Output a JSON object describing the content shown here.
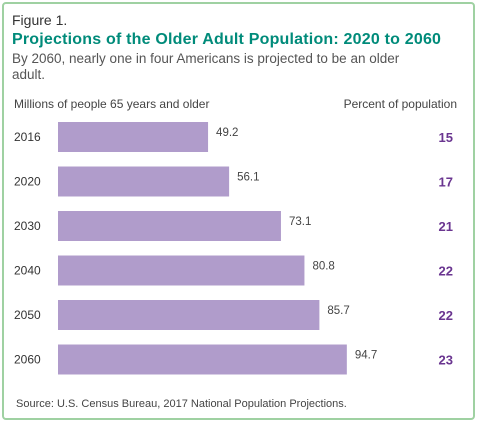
{
  "figure_label": "Figure 1.",
  "title": "Projections of the Older Adult Population: 2020 to 2060",
  "subtitle": "By 2060, nearly one in four Americans is projected to be an older adult.",
  "left_header": "Millions of people 65 years and older",
  "right_header": "Percent of population",
  "source": "Source: U.S. Census Bureau, 2017 National Population Projections.",
  "colors": {
    "bar": "#b09ccb",
    "percent": "#6a3590",
    "title": "#008b7a",
    "border": "#9fd1a2"
  },
  "chart_data": {
    "type": "bar",
    "orientation": "horizontal",
    "categories": [
      "2016",
      "2020",
      "2030",
      "2040",
      "2050",
      "2060"
    ],
    "values": [
      49.2,
      56.1,
      73.1,
      80.8,
      85.7,
      94.7
    ],
    "value_labels": [
      "49.2",
      "56.1",
      "73.1",
      "80.8",
      "85.7",
      "94.7"
    ],
    "percent": [
      15,
      17,
      21,
      22,
      22,
      23
    ],
    "title": "Projections of the Older Adult Population: 2020 to 2060",
    "xlabel": "Millions of people 65 years and older",
    "ylabel": "",
    "xlim": [
      0,
      100
    ],
    "grid": false,
    "legend": "none"
  }
}
